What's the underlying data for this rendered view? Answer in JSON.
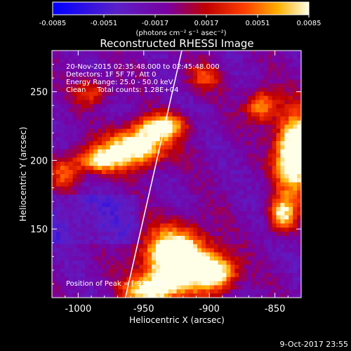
{
  "colorbar": {
    "ticks": [
      "-0.0085",
      "-0.0051",
      "-0.0017",
      "0.0017",
      "0.0051",
      "0.0085"
    ],
    "units": "(photons cm⁻² s⁻¹ asec⁻²)",
    "range": [
      -0.0085,
      0.0085
    ]
  },
  "title": "Reconstructed RHESSI Image",
  "annotations": {
    "time": "20-Nov-2015 02:35:48.000 to 02:45:48.000",
    "detectors": "Detectors: 1F 5F 7F, Att 0",
    "energy": "Energy Range: 25.0 - 50.0 keV",
    "clean": "Clean     Total counts: 1.28E+04",
    "peak": "Position of Peak = [-930,101]"
  },
  "footer": {
    "date": "9-Oct-2017 23:55"
  },
  "chart_data": {
    "type": "heatmap",
    "title": "Reconstructed RHESSI Image",
    "xlabel": "Heliocentric X (arcsec)",
    "ylabel": "Heliocentric Y (arcsec)",
    "xlim": [
      -1020,
      -830
    ],
    "ylim": [
      100,
      280
    ],
    "x_ticks": [
      "-1000",
      "-950",
      "-900",
      "-850"
    ],
    "y_ticks": [
      "150",
      "200",
      "250"
    ],
    "x_tick_values": [
      -1000,
      -950,
      -900,
      -850
    ],
    "y_tick_values": [
      150,
      200,
      250
    ],
    "value_range": [
      -0.0085,
      0.0085
    ],
    "colormap": "blue-purple-red-orange-yellow-white",
    "peak_position": [
      -930,
      101
    ],
    "limb_line": [
      [
        -964,
        100
      ],
      [
        -921,
        280
      ]
    ]
  }
}
